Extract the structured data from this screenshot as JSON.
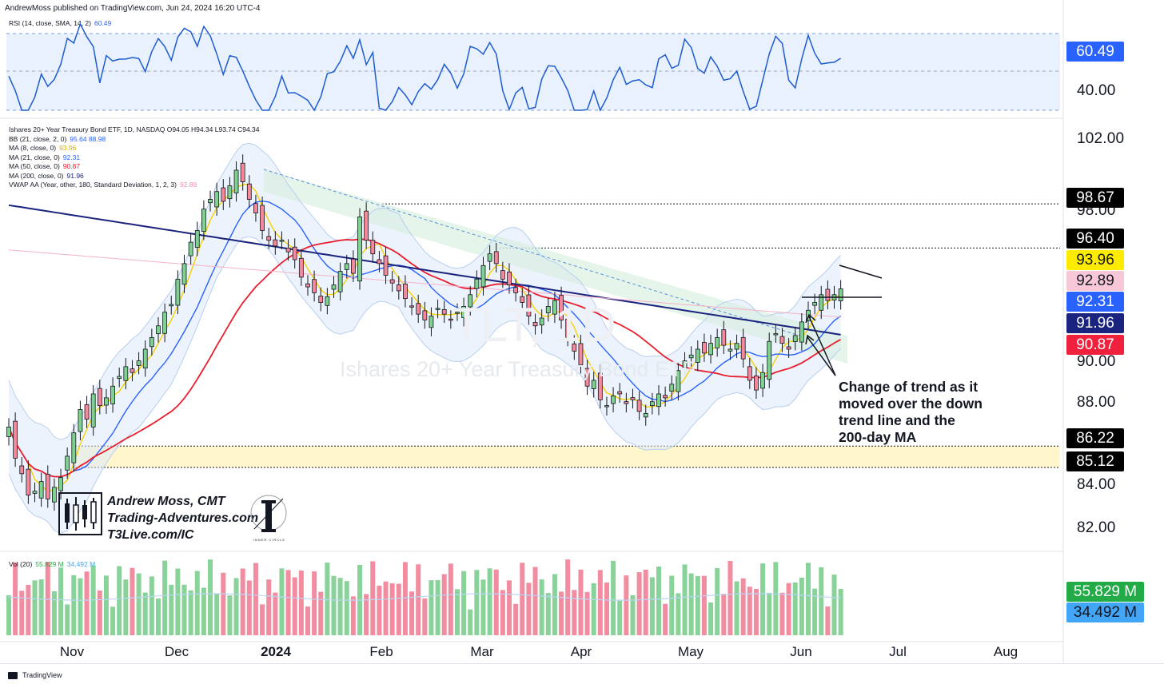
{
  "header": {
    "text": "AndrewMoss published on TradingView.com, Jun 24, 2024 16:20 UTC-4"
  },
  "footer": {
    "brand": "TradingView"
  },
  "rsi_legend": {
    "label": "RSI (14, close, SMA, 14, 2)",
    "value": "60.49"
  },
  "price_legend": {
    "symbol_line": "Ishares 20+ Year Treasury Bond ETF, 1D, NASDAQ  O94.05  H94.34  L93.74  C94.34",
    "rows": [
      {
        "label": "BB (21, close, 2, 0)",
        "value": "95.64  88.98",
        "color": "#2962ff"
      },
      {
        "label": "MA (8, close, 0)",
        "value": "93.96",
        "color": "#f5d000"
      },
      {
        "label": "MA (21, close, 0)",
        "value": "92.31",
        "color": "#2962ff"
      },
      {
        "label": "MA (50, close, 0)",
        "value": "90.87",
        "color": "#e91e2f"
      },
      {
        "label": "MA (200, close, 0)",
        "value": "91.96",
        "color": "#1a237e"
      },
      {
        "label": "VWAP AA (Year, other, 180, Standard Deviation, 1, 2, 3)",
        "value": "92.89",
        "color": "#f8bbd0"
      }
    ]
  },
  "vol_legend": {
    "label": "Vol (20)",
    "value1": "55.829 M",
    "value2": "34.492 M"
  },
  "watermark": {
    "ticker": "TLT, 1D",
    "name": "Ishares 20+ Year Treasury Bond ETF"
  },
  "brand": {
    "line1": "Andrew Moss, CMT",
    "line2": "Trading-Adventures.com",
    "line3": "T3Live.com/IC",
    "logo2_caption": "INNER CIRCLE"
  },
  "annotation": {
    "lines": [
      "Change of trend as it",
      "moved over the down",
      "trend line and the",
      "200-day MA"
    ]
  },
  "axis": {
    "rsi_ticks": [
      "40.00"
    ],
    "price_ticks": [
      "102.00",
      "98.00",
      "90.00",
      "88.00",
      "84.00",
      "82.00"
    ],
    "time_labels": [
      "Nov",
      "Dec",
      "2024",
      "Feb",
      "Mar",
      "Apr",
      "May",
      "Jun",
      "Jul",
      "Aug"
    ]
  },
  "tags": {
    "rsi": {
      "text": "60.49",
      "bg": "#2962ff",
      "fg": "#ffffff"
    },
    "price": [
      {
        "text": "98.67",
        "bg": "#000000",
        "fg": "#ffffff"
      },
      {
        "text": "96.40",
        "bg": "#000000",
        "fg": "#ffffff"
      },
      {
        "text": "93.96",
        "bg": "#ffeb00",
        "fg": "#131722"
      },
      {
        "text": "92.89",
        "bg": "#f8c8d8",
        "fg": "#131722"
      },
      {
        "text": "92.31",
        "bg": "#2962ff",
        "fg": "#ffffff"
      },
      {
        "text": "91.96",
        "bg": "#1a237e",
        "fg": "#ffffff"
      },
      {
        "text": "90.87",
        "bg": "#f0213c",
        "fg": "#ffffff"
      },
      {
        "text": "86.22",
        "bg": "#000000",
        "fg": "#ffffff"
      },
      {
        "text": "85.12",
        "bg": "#000000",
        "fg": "#ffffff"
      }
    ],
    "volume": [
      {
        "text": "55.829 M",
        "bg": "#22ab46",
        "fg": "#ffffff"
      },
      {
        "text": "34.492 M",
        "bg": "#42a5f5",
        "fg": "#131722"
      }
    ]
  },
  "colors": {
    "up": "#26a69a",
    "up_fill": "#7fd18f",
    "down": "#ef5350",
    "down_fill": "#f5899b",
    "bb": "#2962ff",
    "ma8": "#f5d000",
    "ma50": "#e91e2f",
    "ma200": "#1a237e"
  },
  "chart_data": {
    "type": "candlestick",
    "title": "Ishares 20+ Year Treasury Bond ETF, 1D, NASDAQ",
    "ohlc_last": {
      "open": 94.05,
      "high": 94.34,
      "low": 93.74,
      "close": 94.34
    },
    "ylim": [
      81,
      104
    ],
    "x_range": [
      "2023-10-17",
      "2024-08-31"
    ],
    "levels": [
      98.67,
      96.4,
      86.22,
      85.12
    ],
    "support_zone": [
      85.12,
      86.22
    ],
    "series": [
      {
        "name": "MA (8, close, 0)",
        "last": 93.96
      },
      {
        "name": "MA (21, close, 0)",
        "last": 92.31
      },
      {
        "name": "MA (50, close, 0)",
        "last": 90.87
      },
      {
        "name": "MA (200, close, 0)",
        "last": 91.96
      },
      {
        "name": "BB (21, close, 2, 0)",
        "upper": 95.64,
        "lower": 88.98
      },
      {
        "name": "VWAP AA",
        "last": 92.89
      }
    ],
    "closes": [
      87.2,
      85.6,
      84.8,
      83.7,
      83.9,
      84.4,
      83.5,
      84.1,
      84.6,
      85.7,
      86.9,
      88.1,
      87.6,
      88.9,
      88.3,
      88.7,
      89.3,
      89.8,
      90.3,
      90.0,
      90.6,
      91.2,
      91.8,
      92.4,
      93.1,
      93.5,
      94.8,
      95.6,
      96.7,
      97.3,
      98.4,
      98.9,
      99.3,
      98.8,
      99.6,
      100.4,
      99.8,
      98.9,
      98.2,
      97.3,
      96.8,
      96.5,
      96.8,
      96.2,
      95.8,
      94.9,
      94.4,
      94.1,
      93.6,
      93.9,
      94.5,
      95.2,
      95.6,
      95.1,
      98.0,
      96.8,
      96.1,
      95.6,
      95.0,
      94.6,
      94.2,
      93.8,
      93.4,
      93.0,
      92.7,
      92.9,
      93.3,
      93.0,
      92.7,
      93.1,
      93.4,
      94.0,
      94.8,
      95.5,
      96.1,
      95.6,
      94.8,
      94.5,
      94.1,
      93.6,
      92.9,
      92.4,
      92.8,
      93.4,
      93.7,
      92.7,
      91.8,
      91.1,
      90.4,
      89.3,
      89.6,
      88.6,
      88.3,
      88.8,
      88.9,
      88.4,
      88.6,
      88.0,
      87.9,
      88.5,
      88.9,
      88.7,
      89.4,
      90.1,
      90.6,
      90.9,
      91.2,
      91.0,
      91.5,
      91.8,
      91.4,
      91.2,
      91.5,
      90.7,
      89.6,
      89.1,
      90.0,
      91.6,
      92.0,
      91.5,
      91.2,
      91.9,
      92.6,
      93.2,
      93.6,
      94.0,
      93.7,
      94.0,
      94.3
    ],
    "rsi": {
      "last": 60.49,
      "ticks": [
        40
      ]
    },
    "volume": {
      "unit": "M",
      "last": 55.829,
      "ma20_last": 34.492
    }
  }
}
